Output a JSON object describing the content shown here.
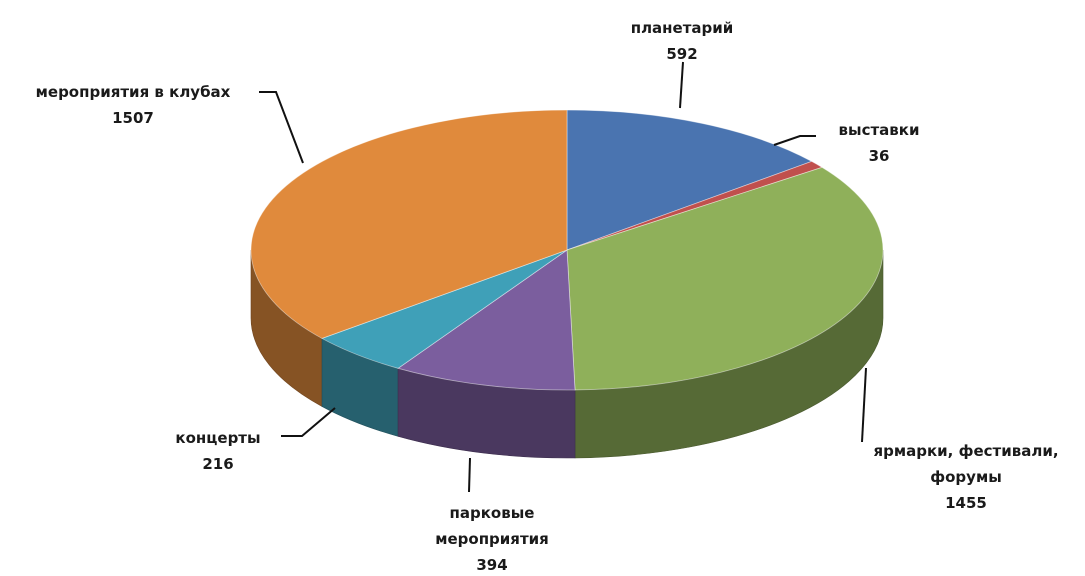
{
  "chart_data": {
    "type": "pie",
    "title": "",
    "slices": [
      {
        "name": "планетарий",
        "value": 592,
        "color": "#4a74b0"
      },
      {
        "name": "выставки",
        "value": 36,
        "color": "#c0504d"
      },
      {
        "name": "ярмарки, фестивали, форумы",
        "value": 1455,
        "color": "#8fb05a"
      },
      {
        "name": "парковые мероприятия",
        "value": 394,
        "color": "#7b5e9e"
      },
      {
        "name": "концерты",
        "value": 216,
        "color": "#3fa0b8"
      },
      {
        "name": "мероприятия в клубах",
        "value": 1507,
        "color": "#e08a3c"
      }
    ],
    "labels": [
      {
        "lines": [
          "планетарий",
          "592"
        ]
      },
      {
        "lines": [
          "выставки",
          "36"
        ]
      },
      {
        "lines": [
          "ярмарки, фестивали,",
          "форумы",
          "1455"
        ]
      },
      {
        "lines": [
          "парковые",
          "мероприятия",
          "394"
        ]
      },
      {
        "lines": [
          "концерты",
          "216"
        ]
      },
      {
        "lines": [
          "мероприятия в клубах",
          "1507"
        ]
      }
    ],
    "style": "3d-pie"
  }
}
